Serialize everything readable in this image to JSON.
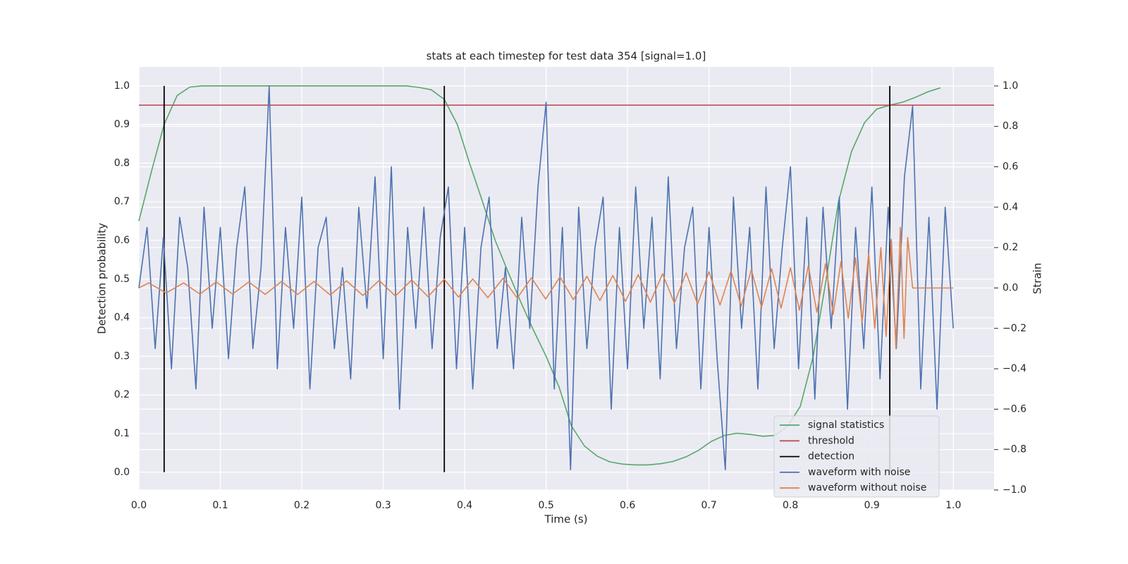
{
  "chart_data": {
    "type": "line",
    "title": "stats at each timestep for test data 354 [signal=1.0]",
    "xlabel": "Time (s)",
    "ylabel": "Detection probability",
    "y2label": "Strain",
    "xlim": [
      0,
      1.05
    ],
    "ylim": [
      -0.046,
      1.049
    ],
    "y2lim": [
      -1.0,
      1.094
    ],
    "xticks": [
      {
        "value": 0,
        "label": "0.0"
      },
      0.1,
      0.2,
      0.3,
      0.4,
      0.5,
      0.6,
      0.7,
      0.8,
      0.9,
      {
        "value": 1,
        "label": "1.0"
      }
    ],
    "yticks": [
      {
        "value": 0,
        "label": "0.0"
      },
      0.1,
      0.2,
      0.3,
      0.4,
      0.5,
      0.6,
      0.7,
      0.8,
      0.9,
      {
        "value": 1,
        "label": "1.0"
      }
    ],
    "y2ticks": [
      {
        "value": -1.0,
        "label": "−1.0"
      },
      {
        "value": -0.8,
        "label": "−0.8"
      },
      {
        "value": -0.6,
        "label": "−0.6"
      },
      {
        "value": -0.4,
        "label": "−0.4"
      },
      {
        "value": -0.2,
        "label": "−0.2"
      },
      {
        "value": 0,
        "label": "0.0"
      },
      0.2,
      0.4,
      0.6,
      0.8,
      {
        "value": 1,
        "label": "1.0"
      }
    ],
    "grid": true,
    "legend_loc": "lower right",
    "series": [
      {
        "name": "signal statistics",
        "color": "#55a868",
        "x": [
          0,
          0.0156,
          0.031,
          0.047,
          0.0625,
          0.078,
          0.328,
          0.344,
          0.359,
          0.375,
          0.391,
          0.406,
          0.422,
          0.4375,
          0.453,
          0.469,
          0.484,
          0.5,
          0.516,
          0.531,
          0.547,
          0.5625,
          0.578,
          0.594,
          0.609,
          0.625,
          0.641,
          0.656,
          0.672,
          0.6875,
          0.703,
          0.719,
          0.734,
          0.75,
          0.766,
          0.781,
          0.797,
          0.812,
          0.828,
          0.844,
          0.859,
          0.875,
          0.891,
          0.906,
          0.922,
          0.938,
          0.953,
          0.969,
          0.984
        ],
        "values": [
          0.65,
          0.78,
          0.9,
          0.975,
          0.997,
          1.0,
          1.0,
          0.996,
          0.99,
          0.965,
          0.9,
          0.8,
          0.7,
          0.6,
          0.52,
          0.44,
          0.37,
          0.3,
          0.22,
          0.12,
          0.068,
          0.042,
          0.027,
          0.021,
          0.019,
          0.019,
          0.022,
          0.028,
          0.04,
          0.057,
          0.08,
          0.095,
          0.101,
          0.098,
          0.093,
          0.095,
          0.12,
          0.17,
          0.3,
          0.5,
          0.7,
          0.83,
          0.905,
          0.94,
          0.95,
          0.958,
          0.97,
          0.985,
          0.995
        ]
      },
      {
        "name": "threshold",
        "color": "#c44e52",
        "x": [
          0,
          1.05
        ],
        "values": [
          0.95,
          0.95
        ]
      },
      {
        "name": "detection",
        "color": "#000000",
        "x": [
          0.031,
          0.375,
          0.922
        ],
        "y_range": [
          0,
          1
        ]
      },
      {
        "name": "waveform with noise",
        "color": "#4c72b0",
        "axis": "y2",
        "x": [
          0,
          0.01,
          0.02,
          0.03,
          0.04,
          0.05,
          0.06,
          0.07,
          0.08,
          0.09,
          0.1,
          0.11,
          0.12,
          0.13,
          0.14,
          0.15,
          0.16,
          0.17,
          0.18,
          0.19,
          0.2,
          0.21,
          0.22,
          0.23,
          0.24,
          0.25,
          0.26,
          0.27,
          0.28,
          0.29,
          0.3,
          0.31,
          0.32,
          0.33,
          0.34,
          0.35,
          0.36,
          0.37,
          0.38,
          0.39,
          0.4,
          0.41,
          0.42,
          0.43,
          0.44,
          0.45,
          0.46,
          0.47,
          0.48,
          0.49,
          0.5,
          0.51,
          0.52,
          0.53,
          0.54,
          0.55,
          0.56,
          0.57,
          0.58,
          0.59,
          0.6,
          0.61,
          0.62,
          0.63,
          0.64,
          0.65,
          0.66,
          0.67,
          0.68,
          0.69,
          0.7,
          0.71,
          0.72,
          0.73,
          0.74,
          0.75,
          0.76,
          0.77,
          0.78,
          0.79,
          0.8,
          0.81,
          0.82,
          0.83,
          0.84,
          0.85,
          0.86,
          0.87,
          0.88,
          0.89,
          0.9,
          0.91,
          0.92,
          0.93,
          0.94,
          0.95,
          0.96,
          0.97,
          0.98,
          0.99,
          1.0
        ],
        "values": [
          0.0,
          0.3,
          -0.3,
          0.25,
          -0.4,
          0.35,
          0.1,
          -0.5,
          0.4,
          -0.2,
          0.3,
          -0.35,
          0.2,
          0.5,
          -0.3,
          0.1,
          1.0,
          -0.4,
          0.3,
          -0.2,
          0.45,
          -0.5,
          0.2,
          0.35,
          -0.3,
          0.1,
          -0.45,
          0.4,
          -0.1,
          0.55,
          -0.35,
          0.6,
          -0.6,
          0.3,
          -0.2,
          0.4,
          -0.3,
          0.25,
          0.5,
          -0.4,
          0.3,
          -0.5,
          0.2,
          0.45,
          -0.3,
          0.1,
          -0.4,
          0.35,
          -0.2,
          0.5,
          0.92,
          -0.5,
          0.3,
          -0.9,
          0.4,
          -0.3,
          0.2,
          0.45,
          -0.6,
          0.3,
          -0.4,
          0.5,
          -0.2,
          0.35,
          -0.45,
          0.55,
          -0.3,
          0.2,
          0.4,
          -0.5,
          0.3,
          -0.35,
          -0.9,
          0.45,
          -0.2,
          0.3,
          -0.5,
          0.5,
          -0.3,
          0.2,
          0.6,
          -0.4,
          0.35,
          -0.55,
          0.4,
          -0.2,
          0.45,
          -0.6,
          0.3,
          -0.3,
          0.5,
          -0.45,
          0.4,
          -0.3,
          0.55,
          0.9,
          -0.5,
          0.35,
          -0.6,
          0.4,
          -0.2
        ]
      },
      {
        "name": "waveform without noise",
        "color": "#dd8452",
        "axis": "y2",
        "x": [
          0,
          0.012,
          0.0335,
          0.055,
          0.075,
          0.095,
          0.115,
          0.135,
          0.155,
          0.175,
          0.195,
          0.215,
          0.235,
          0.255,
          0.275,
          0.295,
          0.315,
          0.335,
          0.355,
          0.375,
          0.3925,
          0.41,
          0.4285,
          0.447,
          0.4645,
          0.482,
          0.4995,
          0.517,
          0.5335,
          0.55,
          0.566,
          0.582,
          0.5975,
          0.613,
          0.628,
          0.643,
          0.6575,
          0.672,
          0.686,
          0.7,
          0.7135,
          0.727,
          0.7395,
          0.752,
          0.7645,
          0.777,
          0.7885,
          0.8,
          0.811,
          0.822,
          0.8325,
          0.843,
          0.8525,
          0.862,
          0.871,
          0.88,
          0.888,
          0.896,
          0.9035,
          0.911,
          0.9175,
          0.924,
          0.9295,
          0.935,
          0.9395,
          0.944,
          0.95,
          1.0
        ],
        "values": [
          0,
          0.025,
          -0.025,
          0.025,
          -0.03,
          0.03,
          -0.03,
          0.03,
          -0.032,
          0.032,
          -0.032,
          0.032,
          -0.035,
          0.035,
          -0.037,
          0.037,
          -0.04,
          0.04,
          -0.043,
          0.043,
          -0.045,
          0.045,
          -0.048,
          0.048,
          -0.05,
          0.05,
          -0.055,
          0.055,
          -0.058,
          0.058,
          -0.062,
          0.062,
          -0.066,
          0.066,
          -0.07,
          0.07,
          -0.075,
          0.075,
          -0.08,
          0.08,
          -0.085,
          0.085,
          -0.09,
          0.09,
          -0.095,
          0.095,
          -0.1,
          0.1,
          -0.11,
          0.11,
          -0.12,
          0.12,
          -0.13,
          0.13,
          -0.15,
          0.15,
          -0.17,
          0.17,
          -0.2,
          0.2,
          -0.24,
          0.24,
          -0.3,
          0.3,
          -0.25,
          0.25,
          0,
          0
        ]
      }
    ]
  }
}
